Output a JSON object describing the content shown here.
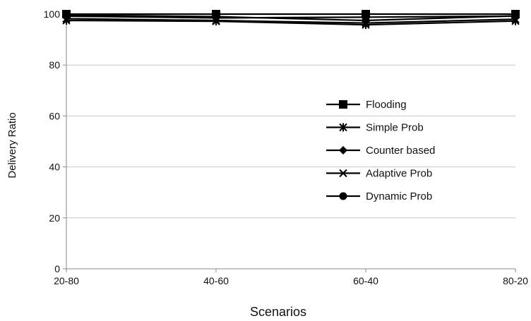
{
  "chart_data": {
    "type": "line",
    "title": "",
    "xlabel": "Scenarios",
    "ylabel": "Delivery Ratio",
    "categories": [
      "20-80",
      "40-60",
      "60-40",
      "80-20"
    ],
    "ylim": [
      0,
      100
    ],
    "yticks": [
      0,
      20,
      40,
      60,
      80,
      100
    ],
    "grid": "horizontal",
    "legend_position": "center-right",
    "series": [
      {
        "name": "Flooding",
        "marker": "square",
        "values": [
          100,
          100,
          100,
          100
        ]
      },
      {
        "name": "Simple Prob",
        "marker": "asterisk",
        "values": [
          97.5,
          97.2,
          95.8,
          97.3
        ]
      },
      {
        "name": "Counter based",
        "marker": "diamond",
        "values": [
          99.2,
          98.5,
          98.8,
          99.2
        ]
      },
      {
        "name": "Adaptive Prob",
        "marker": "x",
        "values": [
          98.2,
          97.5,
          96.5,
          98.0
        ]
      },
      {
        "name": "Dynamic Prob",
        "marker": "circle",
        "values": [
          99.6,
          99.0,
          97.5,
          99.3
        ]
      }
    ],
    "colors": {
      "series": "#000000",
      "grid": "#c8c8c8",
      "axis": "#888888"
    }
  }
}
